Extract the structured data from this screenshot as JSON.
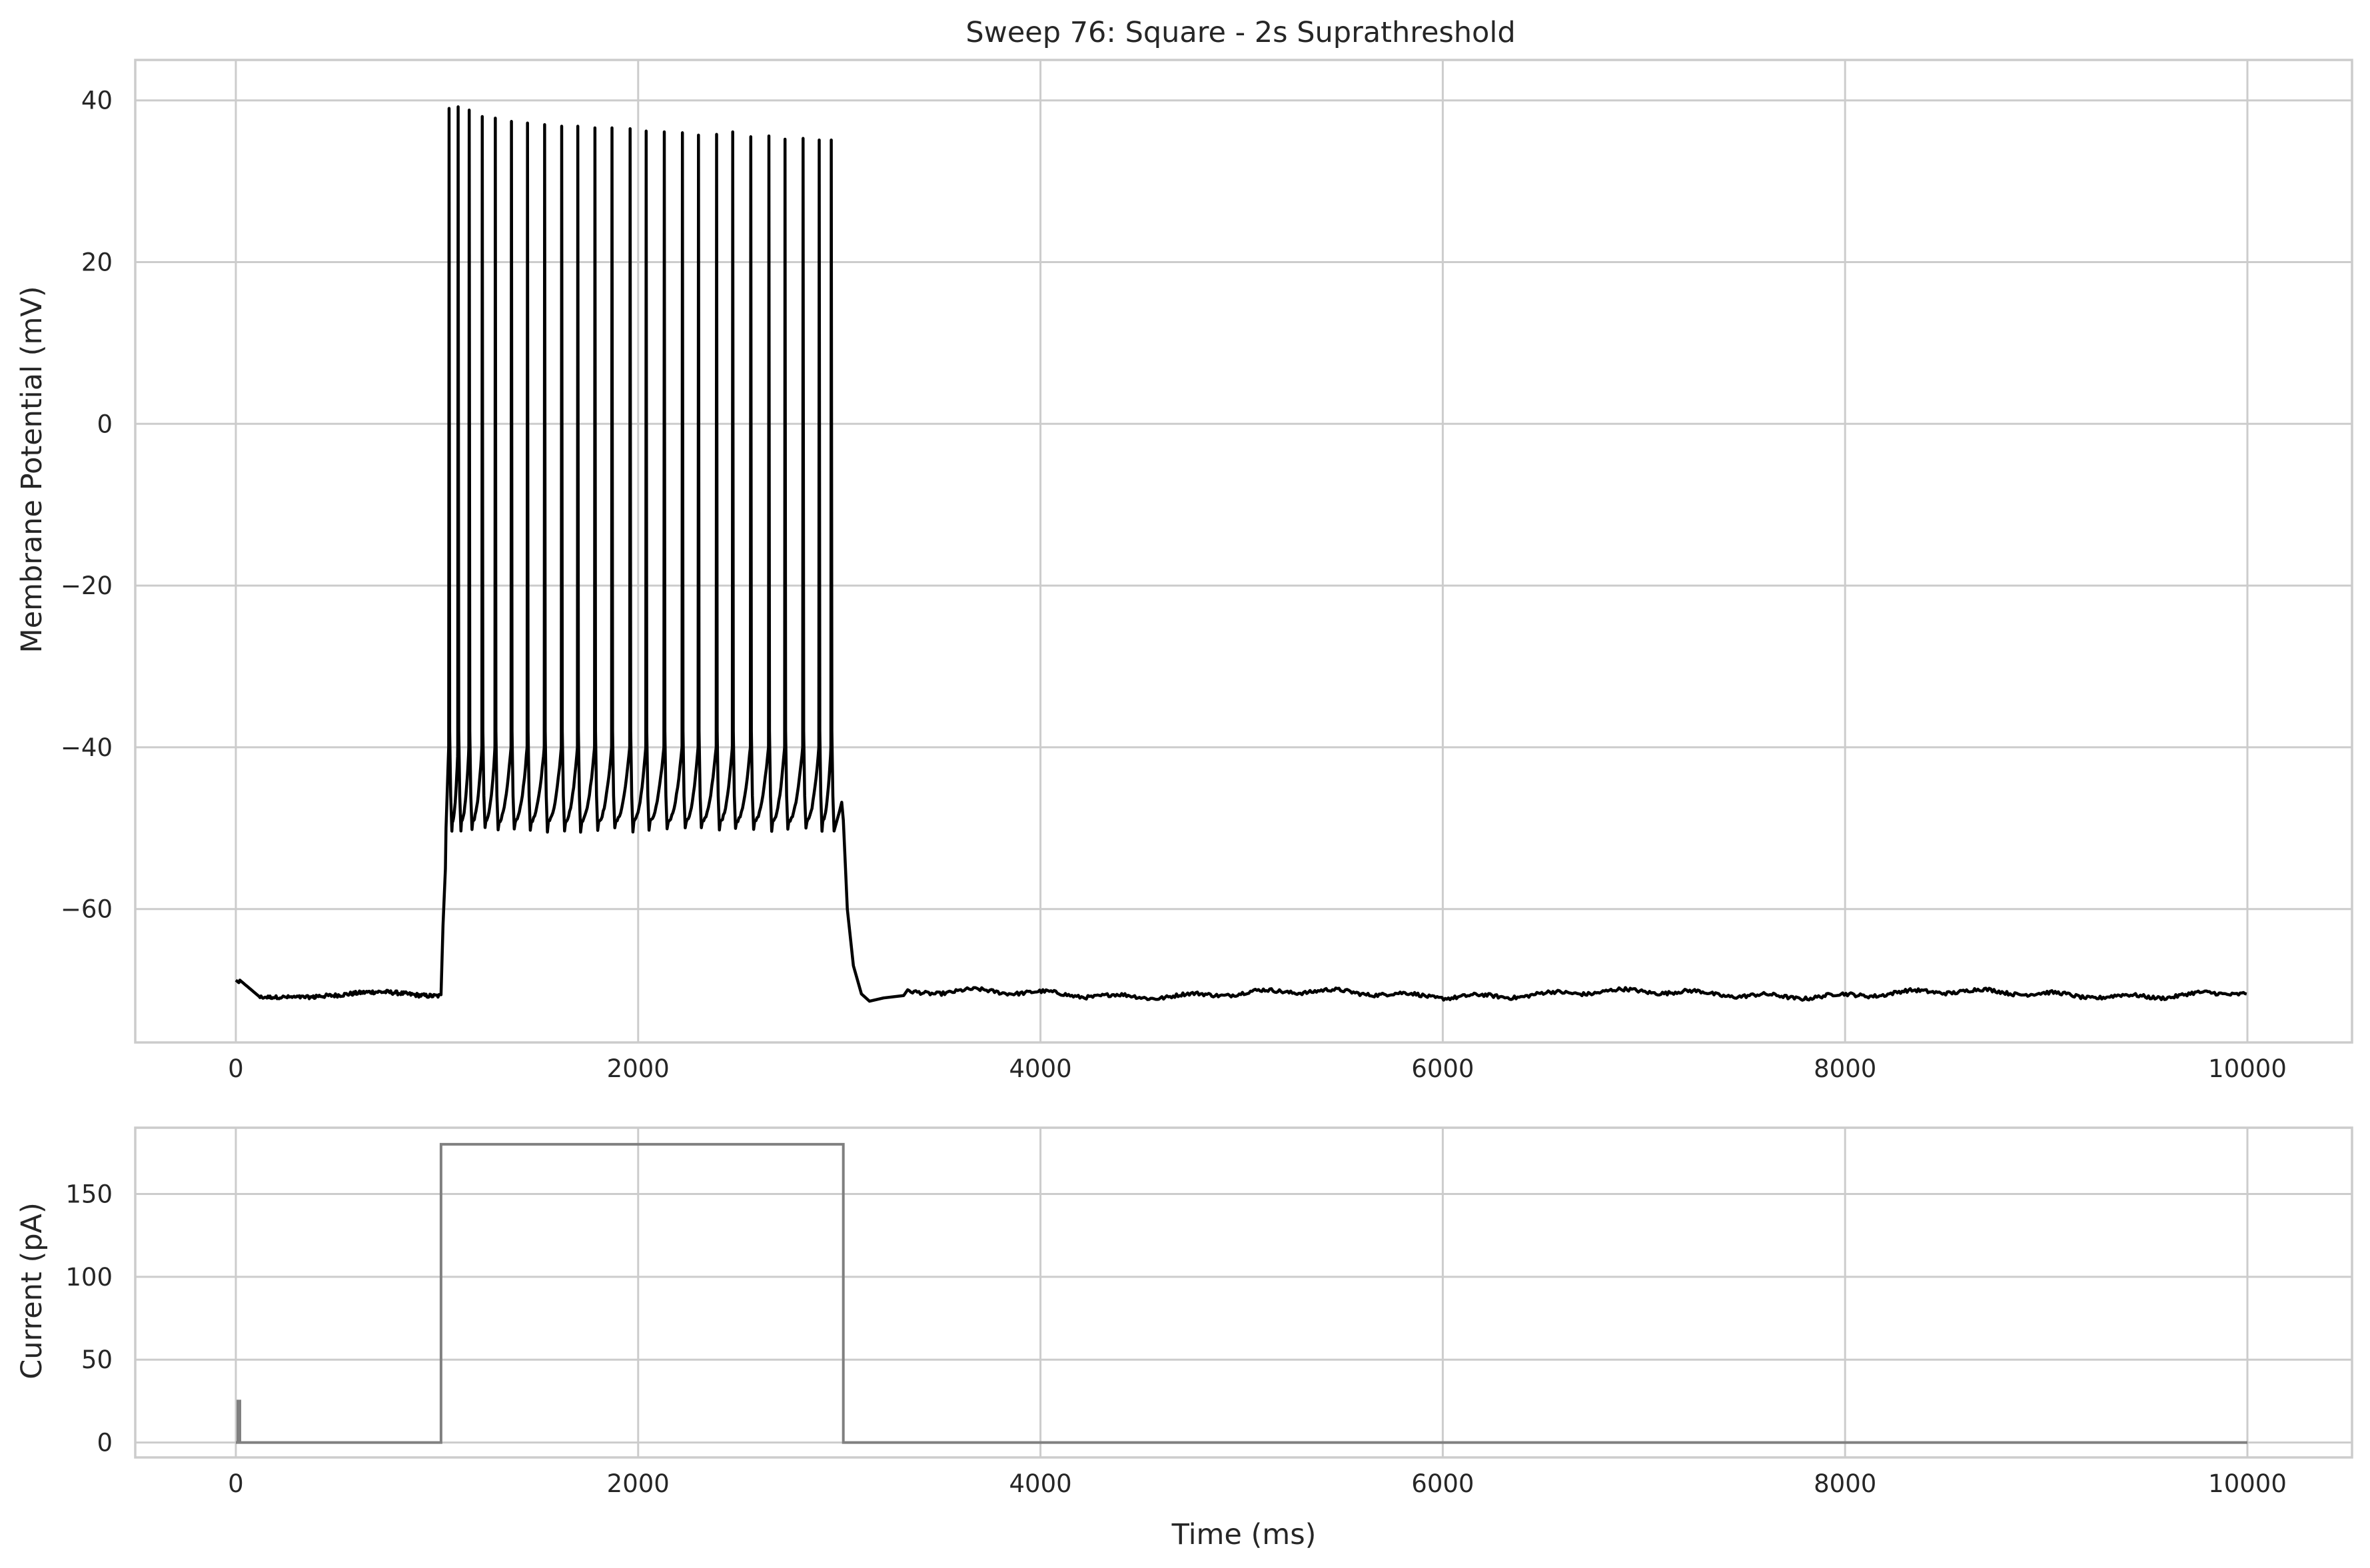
{
  "chart_data": [
    {
      "type": "line",
      "title": "Sweep 76: Square - 2s Suprathreshold",
      "xlabel": "",
      "ylabel": "Membrane Potential (mV)",
      "xlim": [
        -500,
        10520
      ],
      "ylim": [
        -76.5,
        45
      ],
      "xticks": [
        0,
        2000,
        4000,
        6000,
        8000,
        10000
      ],
      "xtick_labels": [
        "0",
        "2000",
        "4000",
        "6000",
        "8000",
        "10000"
      ],
      "yticks": [
        -60,
        -40,
        -20,
        0,
        20,
        40
      ],
      "ytick_labels": [
        "−60",
        "−40",
        "−20",
        "0",
        "20",
        "40"
      ],
      "grid": true,
      "series": [
        {
          "color": "#000000",
          "resting_potential": -70.5,
          "initial_transient_peak": -68.8,
          "stimulus_start": 1020,
          "stimulus_end": 3020,
          "trough_potential": -50.2,
          "post_stimulus_minimum": -71.4,
          "end_time": 10000,
          "spike_times": [
            1060,
            1105,
            1160,
            1225,
            1290,
            1370,
            1450,
            1535,
            1620,
            1700,
            1785,
            1870,
            1960,
            2040,
            2130,
            2220,
            2300,
            2390,
            2470,
            2560,
            2650,
            2730,
            2820,
            2900,
            2960
          ],
          "spike_peaks": [
            39,
            39.2,
            38.8,
            38,
            37.8,
            37.4,
            37.2,
            37,
            36.8,
            36.8,
            36.6,
            36.6,
            36.5,
            36.2,
            36.1,
            36.0,
            35.7,
            35.8,
            36.1,
            35.5,
            35.6,
            35.2,
            35.3,
            35.1,
            35.1
          ]
        }
      ]
    },
    {
      "type": "line",
      "title": "",
      "xlabel": "Time (ms)",
      "ylabel": "Current (pA)",
      "xlim": [
        -500,
        10520
      ],
      "ylim": [
        -9,
        190
      ],
      "xticks": [
        0,
        2000,
        4000,
        6000,
        8000,
        10000
      ],
      "xtick_labels": [
        "0",
        "2000",
        "4000",
        "6000",
        "8000",
        "10000"
      ],
      "yticks": [
        0,
        50,
        100,
        150
      ],
      "ytick_labels": [
        "0",
        "50",
        "100",
        "150"
      ],
      "grid": true,
      "series": [
        {
          "color": "#808080",
          "x": [
            0,
            0,
            10,
            10,
            20,
            20,
            1020,
            1020,
            3020,
            3020,
            10000
          ],
          "y": [
            0,
            0,
            0,
            25,
            25,
            0,
            0,
            180,
            180,
            0,
            0
          ]
        }
      ]
    }
  ]
}
